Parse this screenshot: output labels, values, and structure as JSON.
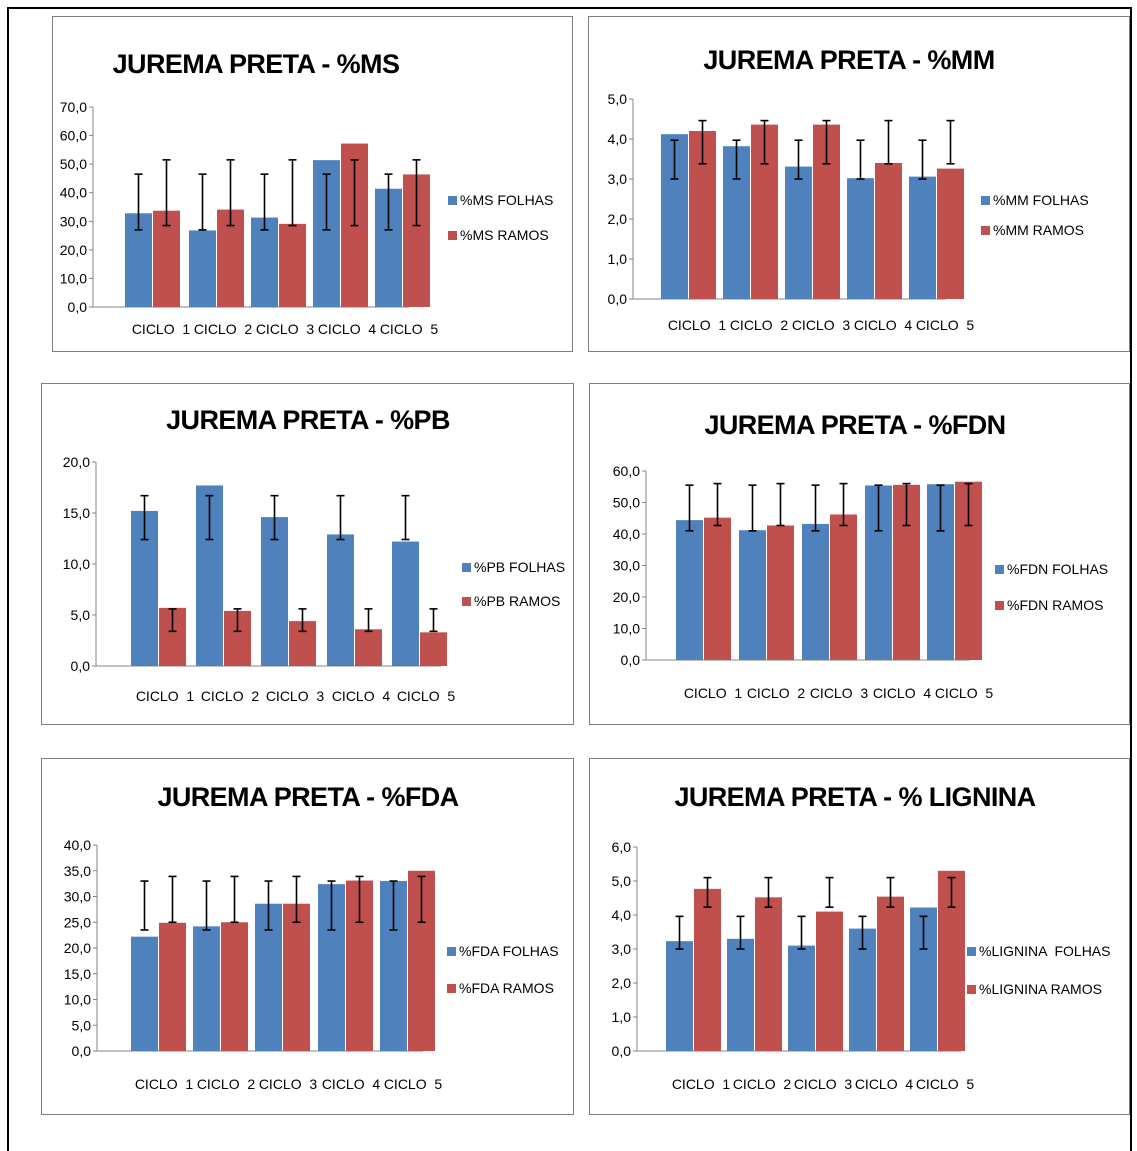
{
  "colors": {
    "folhas": "#4f81bd",
    "ramos": "#c0504d"
  },
  "chart_data": [
    {
      "id": "ms",
      "type": "bar",
      "title": "JUREMA PRETA - %MS",
      "categories": [
        "CICLO  1",
        "CICLO  2",
        "CICLO  3",
        "CICLO  4",
        "CICLO  5"
      ],
      "yticks": [
        "0,0",
        "10,0",
        "20,0",
        "30,0",
        "40,0",
        "50,0",
        "60,0",
        "70,0"
      ],
      "ylim": [
        0,
        70
      ],
      "series": [
        {
          "name": "%MS FOLHAS",
          "values": [
            32.8,
            26.8,
            31.3,
            51.4,
            41.4
          ],
          "err_low": [
            27,
            27,
            27,
            27,
            27
          ],
          "err_high": [
            46.5,
            46.5,
            46.5,
            46.5,
            46.5
          ]
        },
        {
          "name": "%MS RAMOS",
          "values": [
            33.7,
            34.1,
            29.1,
            57.2,
            46.4
          ],
          "err_low": [
            28.5,
            28.5,
            28.5,
            28.5,
            28.5
          ],
          "err_high": [
            51.5,
            51.5,
            51.5,
            51.5,
            51.5
          ]
        }
      ],
      "legend": "right",
      "grid": false
    },
    {
      "id": "mm",
      "type": "bar",
      "title": "JUREMA PRETA - %MM",
      "categories": [
        "CICLO  1",
        "CICLO  2",
        "CICLO  3",
        "CICLO  4",
        "CICLO  5"
      ],
      "yticks": [
        "0,0",
        "1,0",
        "2,0",
        "3,0",
        "4,0",
        "5,0"
      ],
      "ylim": [
        0,
        5
      ],
      "series": [
        {
          "name": "%MM FOLHAS",
          "values": [
            4.12,
            3.82,
            3.31,
            3.02,
            3.06
          ],
          "err_low": [
            3.0,
            3.0,
            3.0,
            3.0,
            3.0
          ],
          "err_high": [
            3.97,
            3.97,
            3.97,
            3.97,
            3.97
          ]
        },
        {
          "name": "%MM RAMOS",
          "values": [
            4.2,
            4.36,
            4.36,
            3.4,
            3.26
          ],
          "err_low": [
            3.38,
            3.38,
            3.38,
            3.38,
            3.38
          ],
          "err_high": [
            4.46,
            4.46,
            4.46,
            4.46,
            4.46
          ]
        }
      ],
      "legend": "right",
      "grid": false
    },
    {
      "id": "pb",
      "type": "bar",
      "title": "JUREMA PRETA - %PB",
      "categories": [
        "CICLO  1",
        "CICLO  2",
        "CICLO  3",
        "CICLO  4",
        "CICLO  5"
      ],
      "yticks": [
        "0,0",
        "5,0",
        "10,0",
        "15,0",
        "20,0"
      ],
      "ylim": [
        0,
        20
      ],
      "series": [
        {
          "name": "%PB FOLHAS",
          "values": [
            15.2,
            17.7,
            14.6,
            12.9,
            12.2
          ],
          "err_low": [
            12.4,
            12.4,
            12.4,
            12.4,
            12.4
          ],
          "err_high": [
            16.7,
            16.7,
            16.7,
            16.7,
            16.7
          ]
        },
        {
          "name": "%PB RAMOS",
          "values": [
            5.7,
            5.4,
            4.4,
            3.6,
            3.3
          ],
          "err_low": [
            3.4,
            3.4,
            3.4,
            3.4,
            3.4
          ],
          "err_high": [
            5.6,
            5.6,
            5.6,
            5.6,
            5.6
          ]
        }
      ],
      "legend": "right",
      "grid": false
    },
    {
      "id": "fdn",
      "type": "bar",
      "title": "JUREMA PRETA - %FDN",
      "categories": [
        "CICLO  1",
        "CICLO  2",
        "CICLO  3",
        "CICLO  4",
        "CICLO  5"
      ],
      "yticks": [
        "0,0",
        "10,0",
        "20,0",
        "30,0",
        "40,0",
        "50,0",
        "60,0"
      ],
      "ylim": [
        0,
        60
      ],
      "series": [
        {
          "name": "%FDN FOLHAS",
          "values": [
            44.4,
            41.2,
            43.2,
            55.4,
            55.8
          ],
          "err_low": [
            41,
            41,
            41,
            41,
            41
          ],
          "err_high": [
            55.5,
            55.5,
            55.5,
            55.5,
            55.5
          ]
        },
        {
          "name": "%FDN RAMOS",
          "values": [
            45.2,
            42.7,
            46.2,
            55.6,
            56.6
          ],
          "err_low": [
            42.7,
            42.7,
            42.7,
            42.7,
            42.7
          ],
          "err_high": [
            56.0,
            56.0,
            56.0,
            56.0,
            56.0
          ]
        }
      ],
      "legend": "right",
      "grid": false
    },
    {
      "id": "fda",
      "type": "bar",
      "title": "JUREMA PRETA - %FDA",
      "categories": [
        "CICLO  1",
        "CICLO  2",
        "CICLO  3",
        "CICLO  4",
        "CICLO  5"
      ],
      "yticks": [
        "0,0",
        "5,0",
        "10,0",
        "15,0",
        "20,0",
        "25,0",
        "30,0",
        "35,0",
        "40,0"
      ],
      "ylim": [
        0,
        40
      ],
      "series": [
        {
          "name": "%FDA FOLHAS",
          "values": [
            22.2,
            24.2,
            28.6,
            32.4,
            33.0
          ],
          "err_low": [
            23.5,
            23.5,
            23.5,
            23.5,
            23.5
          ],
          "err_high": [
            33.0,
            33.0,
            33.0,
            33.0,
            33.0
          ]
        },
        {
          "name": "%FDA RAMOS",
          "values": [
            24.9,
            25.0,
            28.6,
            33.1,
            35.0
          ],
          "err_low": [
            25.0,
            25.0,
            25.0,
            25.0,
            25.0
          ],
          "err_high": [
            33.9,
            33.9,
            33.9,
            33.9,
            33.9
          ]
        }
      ],
      "legend": "right",
      "grid": false
    },
    {
      "id": "lig",
      "type": "bar",
      "title": "JUREMA PRETA - % LIGNINA",
      "categories": [
        "CICLO  1",
        "CICLO  2",
        "CICLO  3",
        "CICLO  4",
        "CICLO  5"
      ],
      "yticks": [
        "0,0",
        "1,0",
        "2,0",
        "3,0",
        "4,0",
        "5,0",
        "6,0"
      ],
      "ylim": [
        0,
        6
      ],
      "series": [
        {
          "name": "%LIGNINA  FOLHAS",
          "values": [
            3.23,
            3.3,
            3.1,
            3.6,
            4.22
          ],
          "err_low": [
            3.0,
            3.0,
            3.0,
            3.0,
            3.0
          ],
          "err_high": [
            3.96,
            3.96,
            3.96,
            3.96,
            3.96
          ]
        },
        {
          "name": "%LIGNINA RAMOS",
          "values": [
            4.77,
            4.52,
            4.1,
            4.54,
            5.3
          ],
          "err_low": [
            4.23,
            4.23,
            4.23,
            4.23,
            4.23
          ],
          "err_high": [
            5.1,
            5.1,
            5.1,
            5.1,
            5.1
          ]
        }
      ],
      "legend": "right",
      "grid": false
    }
  ]
}
